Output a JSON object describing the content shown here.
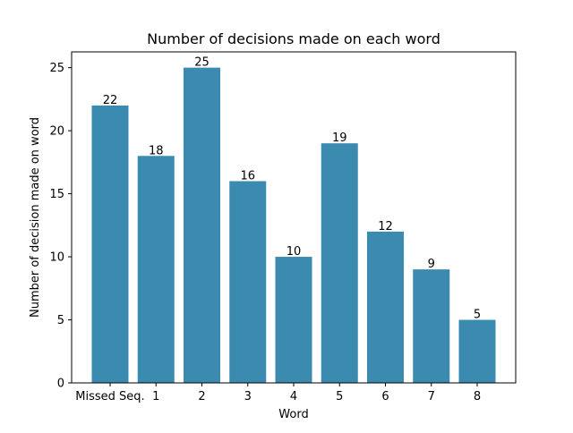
{
  "chart_data": {
    "type": "bar",
    "title": "Number of decisions made on each word",
    "xlabel": "Word",
    "ylabel": "Number of decision made on word",
    "categories": [
      "Missed Seq.",
      "1",
      "2",
      "3",
      "4",
      "5",
      "6",
      "7",
      "8"
    ],
    "values": [
      22,
      18,
      25,
      16,
      10,
      19,
      12,
      9,
      5
    ],
    "ylim": [
      0,
      26.25
    ],
    "yticks": [
      0,
      5,
      10,
      15,
      20,
      25
    ],
    "grid": false,
    "legend": "none",
    "bar_color": "#3b8ab0"
  }
}
